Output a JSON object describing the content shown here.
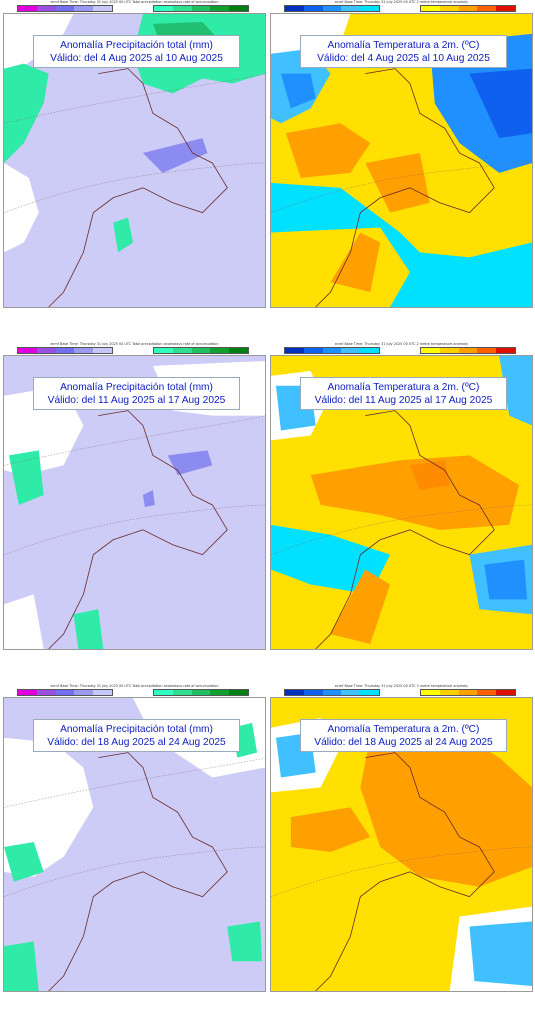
{
  "precip_header": "ecmf Base Time: Thursday 31 July 2025 00 UTC Total precipitation anomalous rate of accumulation",
  "temp_header": "ecmf Base Time: Thursday 31 July 2025 00 UTC 2 metre temperature anomaly",
  "precip_legend": {
    "dry_colors": [
      "#e000e0",
      "#9a4fe0",
      "#7070f0",
      "#9a9af0",
      "#c8c8f8"
    ],
    "wet_colors": [
      "#30ffc0",
      "#30e090",
      "#20c060",
      "#10a030",
      "#008010"
    ],
    "ticks_dry": [
      "-200",
      "-80",
      "-40",
      "-20",
      "-10",
      "0"
    ],
    "ticks_wet": [
      "0",
      "10",
      "20",
      "40",
      "80",
      "200"
    ]
  },
  "temp_legend": {
    "cold_colors": [
      "#0030c0",
      "#1060f0",
      "#2090ff",
      "#40c0ff",
      "#00e0ff"
    ],
    "warm_colors": [
      "#ffff00",
      "#ffd000",
      "#ffa000",
      "#ff6000",
      "#e01000"
    ],
    "ticks_cold": [
      "-12",
      "-8",
      "-4",
      "-2",
      "-1",
      "0"
    ],
    "ticks_warm": [
      "0",
      "1",
      "2",
      "4",
      "8",
      "12"
    ]
  },
  "panels": [
    {
      "title": "Anomalía Precipitación total (mm)",
      "period": "Válido: del 4 Aug 2025 al 10 Aug 2025"
    },
    {
      "title": "Anomalía Temperatura a 2m. (ºC)",
      "period": "Válido: del 4 Aug 2025 al 10 Aug 2025"
    },
    {
      "title": "Anomalía Precipitación total (mm)",
      "period": "Válido: del 11 Aug 2025 al 17 Aug 2025"
    },
    {
      "title": "Anomalía Temperatura a 2m. (ºC)",
      "period": "Válido: del 11 Aug 2025 al 17 Aug 2025"
    },
    {
      "title": "Anomalía Precipitación total (mm)",
      "period": "Válido: del 18 Aug 2025 al 24 Aug 2025"
    },
    {
      "title": "Anomalía Temperatura a 2m. (ºC)",
      "period": "Válido: del 18 Aug 2025 al 24 Aug 2025"
    }
  ]
}
